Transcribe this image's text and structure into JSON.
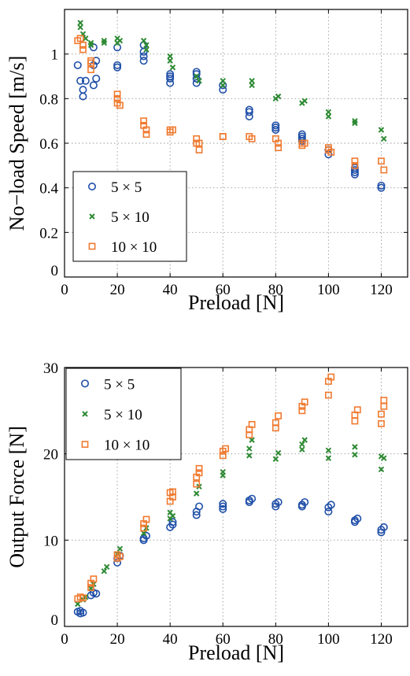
{
  "chart_data": [
    {
      "type": "scatter",
      "title": "",
      "xlabel": "Preload [N]",
      "ylabel": "No−load Speed [m/s]",
      "xlim": [
        0,
        130
      ],
      "ylim": [
        0,
        1.2
      ],
      "xticks": [
        "0",
        "20",
        "40",
        "60",
        "80",
        "100",
        "120"
      ],
      "xtick_values": [
        0,
        20,
        40,
        60,
        80,
        100,
        120
      ],
      "yticks": [
        "0",
        "0.2",
        "0.4",
        "0.6",
        "0.8",
        "1"
      ],
      "ytick_values": [
        0,
        0.2,
        0.4,
        0.6,
        0.8,
        1.0
      ],
      "grid": true,
      "legend_position": "bottom-left",
      "series": [
        {
          "name": "5 × 5",
          "marker": "circle",
          "color": "#1f4fa8",
          "points": [
            [
              5,
              0.95
            ],
            [
              6,
              0.88
            ],
            [
              7,
              0.84
            ],
            [
              7,
              0.81
            ],
            [
              8,
              0.88
            ],
            [
              11,
              0.86
            ],
            [
              11,
              0.95
            ],
            [
              11,
              1.03
            ],
            [
              12,
              0.89
            ],
            [
              12,
              0.97
            ],
            [
              20,
              0.94
            ],
            [
              20,
              0.95
            ],
            [
              20,
              1.03
            ],
            [
              30,
              0.97
            ],
            [
              30,
              0.99
            ],
            [
              30,
              1.01
            ],
            [
              30,
              1.04
            ],
            [
              40,
              0.87
            ],
            [
              40,
              0.89
            ],
            [
              40,
              0.9
            ],
            [
              40,
              0.91
            ],
            [
              50,
              0.87
            ],
            [
              50,
              0.89
            ],
            [
              50,
              0.91
            ],
            [
              50,
              0.92
            ],
            [
              60,
              0.84
            ],
            [
              60,
              0.86
            ],
            [
              70,
              0.72
            ],
            [
              70,
              0.74
            ],
            [
              70,
              0.75
            ],
            [
              80,
              0.66
            ],
            [
              80,
              0.67
            ],
            [
              80,
              0.68
            ],
            [
              90,
              0.61
            ],
            [
              90,
              0.62
            ],
            [
              90,
              0.63
            ],
            [
              90,
              0.64
            ],
            [
              100,
              0.55
            ],
            [
              100,
              0.57
            ],
            [
              110,
              0.46
            ],
            [
              110,
              0.47
            ],
            [
              110,
              0.48
            ],
            [
              110,
              0.49
            ],
            [
              120,
              0.4
            ],
            [
              120,
              0.41
            ]
          ]
        },
        {
          "name": "5 × 10",
          "marker": "x",
          "color": "#2e8a34",
          "points": [
            [
              6,
              1.14
            ],
            [
              6,
              1.12
            ],
            [
              7,
              1.09
            ],
            [
              8,
              1.07
            ],
            [
              10,
              1.05
            ],
            [
              10,
              1.04
            ],
            [
              15,
              1.06
            ],
            [
              15,
              1.05
            ],
            [
              20,
              1.07
            ],
            [
              20,
              1.05
            ],
            [
              21,
              1.06
            ],
            [
              30,
              1.06
            ],
            [
              31,
              1.04
            ],
            [
              31,
              1.02
            ],
            [
              40,
              0.99
            ],
            [
              40,
              0.97
            ],
            [
              41,
              0.94
            ],
            [
              50,
              0.9
            ],
            [
              51,
              0.88
            ],
            [
              60,
              0.88
            ],
            [
              60,
              0.86
            ],
            [
              71,
              0.88
            ],
            [
              71,
              0.86
            ],
            [
              80,
              0.8
            ],
            [
              81,
              0.81
            ],
            [
              90,
              0.78
            ],
            [
              91,
              0.79
            ],
            [
              100,
              0.74
            ],
            [
              100,
              0.72
            ],
            [
              110,
              0.7
            ],
            [
              110,
              0.69
            ],
            [
              120,
              0.66
            ],
            [
              121,
              0.62
            ]
          ]
        },
        {
          "name": "10 × 10",
          "marker": "square",
          "color": "#f07a30",
          "points": [
            [
              5,
              1.06
            ],
            [
              6,
              1.07
            ],
            [
              7,
              1.04
            ],
            [
              7,
              1.02
            ],
            [
              10,
              0.97
            ],
            [
              10,
              0.93
            ],
            [
              10,
              0.96
            ],
            [
              20,
              0.82
            ],
            [
              20,
              0.78
            ],
            [
              20,
              0.8
            ],
            [
              21,
              0.77
            ],
            [
              30,
              0.7
            ],
            [
              30,
              0.68
            ],
            [
              31,
              0.66
            ],
            [
              31,
              0.64
            ],
            [
              40,
              0.66
            ],
            [
              40,
              0.65
            ],
            [
              41,
              0.66
            ],
            [
              50,
              0.6
            ],
            [
              50,
              0.62
            ],
            [
              51,
              0.57
            ],
            [
              51,
              0.6
            ],
            [
              60,
              0.63
            ],
            [
              60,
              0.63
            ],
            [
              70,
              0.63
            ],
            [
              71,
              0.62
            ],
            [
              80,
              0.62
            ],
            [
              81,
              0.6
            ],
            [
              81,
              0.58
            ],
            [
              90,
              0.59
            ],
            [
              90,
              0.6
            ],
            [
              91,
              0.6
            ],
            [
              100,
              0.58
            ],
            [
              100,
              0.57
            ],
            [
              101,
              0.56
            ],
            [
              110,
              0.52
            ],
            [
              110,
              0.5
            ],
            [
              120,
              0.52
            ],
            [
              121,
              0.48
            ]
          ]
        }
      ]
    },
    {
      "type": "scatter",
      "title": "",
      "xlabel": "Preload [N]",
      "ylabel": "Output Force [N]",
      "xlim": [
        0,
        130
      ],
      "ylim": [
        0,
        30
      ],
      "xticks": [
        "0",
        "20",
        "40",
        "60",
        "80",
        "100",
        "120"
      ],
      "xtick_values": [
        0,
        20,
        40,
        60,
        80,
        100,
        120
      ],
      "yticks": [
        "0",
        "10",
        "20",
        "30"
      ],
      "ytick_values": [
        0,
        10,
        20,
        30
      ],
      "grid": true,
      "legend_position": "top-left",
      "series": [
        {
          "name": "5 × 5",
          "marker": "circle",
          "color": "#1f4fa8",
          "points": [
            [
              5,
              1.7
            ],
            [
              6,
              1.5
            ],
            [
              6,
              1.8
            ],
            [
              7,
              1.6
            ],
            [
              10,
              3.6
            ],
            [
              11,
              3.9
            ],
            [
              12,
              3.8
            ],
            [
              20,
              7.4
            ],
            [
              20,
              7.9
            ],
            [
              21,
              8.2
            ],
            [
              30,
              10.0
            ],
            [
              30,
              10.2
            ],
            [
              31,
              10.5
            ],
            [
              40,
              11.5
            ],
            [
              41,
              11.8
            ],
            [
              41,
              12.1
            ],
            [
              50,
              12.9
            ],
            [
              50,
              13.3
            ],
            [
              51,
              13.9
            ],
            [
              60,
              13.6
            ],
            [
              60,
              13.9
            ],
            [
              60,
              14.2
            ],
            [
              70,
              14.4
            ],
            [
              70,
              14.6
            ],
            [
              71,
              14.8
            ],
            [
              80,
              13.9
            ],
            [
              80,
              14.2
            ],
            [
              81,
              14.4
            ],
            [
              90,
              13.9
            ],
            [
              90,
              14.1
            ],
            [
              91,
              14.4
            ],
            [
              100,
              13.3
            ],
            [
              100,
              13.8
            ],
            [
              101,
              14.1
            ],
            [
              110,
              12.1
            ],
            [
              110,
              12.3
            ],
            [
              111,
              12.5
            ],
            [
              120,
              10.9
            ],
            [
              120,
              11.2
            ],
            [
              121,
              11.5
            ]
          ]
        },
        {
          "name": "5 × 10",
          "marker": "x",
          "color": "#2e8a34",
          "points": [
            [
              5,
              2.6
            ],
            [
              7,
              3.1
            ],
            [
              8,
              3.4
            ],
            [
              10,
              4.4
            ],
            [
              11,
              4.9
            ],
            [
              15,
              6.4
            ],
            [
              16,
              6.9
            ],
            [
              20,
              8.4
            ],
            [
              21,
              9.0
            ],
            [
              30,
              10.8
            ],
            [
              31,
              11.4
            ],
            [
              40,
              12.5
            ],
            [
              40,
              13.2
            ],
            [
              41,
              12.8
            ],
            [
              50,
              15.4
            ],
            [
              51,
              16.2
            ],
            [
              60,
              17.5
            ],
            [
              60,
              17.9
            ],
            [
              70,
              19.8
            ],
            [
              70,
              20.6
            ],
            [
              71,
              21.6
            ],
            [
              80,
              19.4
            ],
            [
              81,
              20.1
            ],
            [
              90,
              20.5
            ],
            [
              90,
              21.1
            ],
            [
              91,
              21.6
            ],
            [
              100,
              19.5
            ],
            [
              100,
              20.4
            ],
            [
              110,
              19.9
            ],
            [
              110,
              20.8
            ],
            [
              120,
              18.2
            ],
            [
              120,
              19.7
            ],
            [
              121,
              19.5
            ]
          ]
        },
        {
          "name": "10 × 10",
          "marker": "square",
          "color": "#f07a30",
          "points": [
            [
              5,
              3.2
            ],
            [
              6,
              3.4
            ],
            [
              7,
              3.3
            ],
            [
              10,
              4.5
            ],
            [
              10,
              5.0
            ],
            [
              11,
              5.5
            ],
            [
              20,
              7.9
            ],
            [
              20,
              8.3
            ],
            [
              21,
              8.1
            ],
            [
              30,
              11.4
            ],
            [
              30,
              11.9
            ],
            [
              31,
              12.4
            ],
            [
              40,
              14.5
            ],
            [
              40,
              15.5
            ],
            [
              41,
              15.0
            ],
            [
              41,
              15.6
            ],
            [
              50,
              16.5
            ],
            [
              50,
              17.3
            ],
            [
              51,
              17.8
            ],
            [
              51,
              18.3
            ],
            [
              60,
              19.8
            ],
            [
              60,
              20.3
            ],
            [
              61,
              20.6
            ],
            [
              70,
              22.2
            ],
            [
              70,
              22.8
            ],
            [
              71,
              23.4
            ],
            [
              80,
              23.0
            ],
            [
              80,
              23.6
            ],
            [
              81,
              24.4
            ],
            [
              90,
              25.0
            ],
            [
              90,
              25.5
            ],
            [
              91,
              26.0
            ],
            [
              100,
              26.8
            ],
            [
              100,
              28.4
            ],
            [
              101,
              28.9
            ],
            [
              110,
              23.8
            ],
            [
              110,
              24.5
            ],
            [
              111,
              25.1
            ],
            [
              120,
              23.5
            ],
            [
              120,
              24.6
            ],
            [
              121,
              25.5
            ],
            [
              121,
              26.2
            ]
          ]
        }
      ]
    }
  ]
}
